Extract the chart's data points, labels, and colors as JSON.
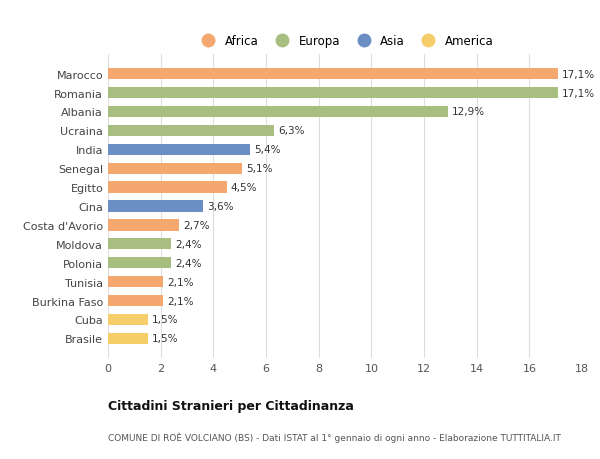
{
  "countries": [
    "Marocco",
    "Romania",
    "Albania",
    "Ucraina",
    "India",
    "Senegal",
    "Egitto",
    "Cina",
    "Costa d'Avorio",
    "Moldova",
    "Polonia",
    "Tunisia",
    "Burkina Faso",
    "Cuba",
    "Brasile"
  ],
  "values": [
    17.1,
    17.1,
    12.9,
    6.3,
    5.4,
    5.1,
    4.5,
    3.6,
    2.7,
    2.4,
    2.4,
    2.1,
    2.1,
    1.5,
    1.5
  ],
  "labels": [
    "17,1%",
    "17,1%",
    "12,9%",
    "6,3%",
    "5,4%",
    "5,1%",
    "4,5%",
    "3,6%",
    "2,7%",
    "2,4%",
    "2,4%",
    "2,1%",
    "2,1%",
    "1,5%",
    "1,5%"
  ],
  "continents": [
    "Africa",
    "Europa",
    "Europa",
    "Europa",
    "Asia",
    "Africa",
    "Africa",
    "Asia",
    "Africa",
    "Europa",
    "Europa",
    "Africa",
    "Africa",
    "America",
    "America"
  ],
  "colors": {
    "Africa": "#F4A870",
    "Europa": "#A8BE80",
    "Asia": "#6B8EC4",
    "America": "#F5CE6A"
  },
  "legend_order": [
    "Africa",
    "Europa",
    "Asia",
    "America"
  ],
  "title": "Cittadini Stranieri per Cittadinanza",
  "subtitle": "COMUNE DI ROÈ VOLCIANO (BS) - Dati ISTAT al 1° gennaio di ogni anno - Elaborazione TUTTITALIA.IT",
  "xlim": [
    0,
    18
  ],
  "xticks": [
    0,
    2,
    4,
    6,
    8,
    10,
    12,
    14,
    16,
    18
  ],
  "background_color": "#ffffff",
  "grid_color": "#dddddd"
}
